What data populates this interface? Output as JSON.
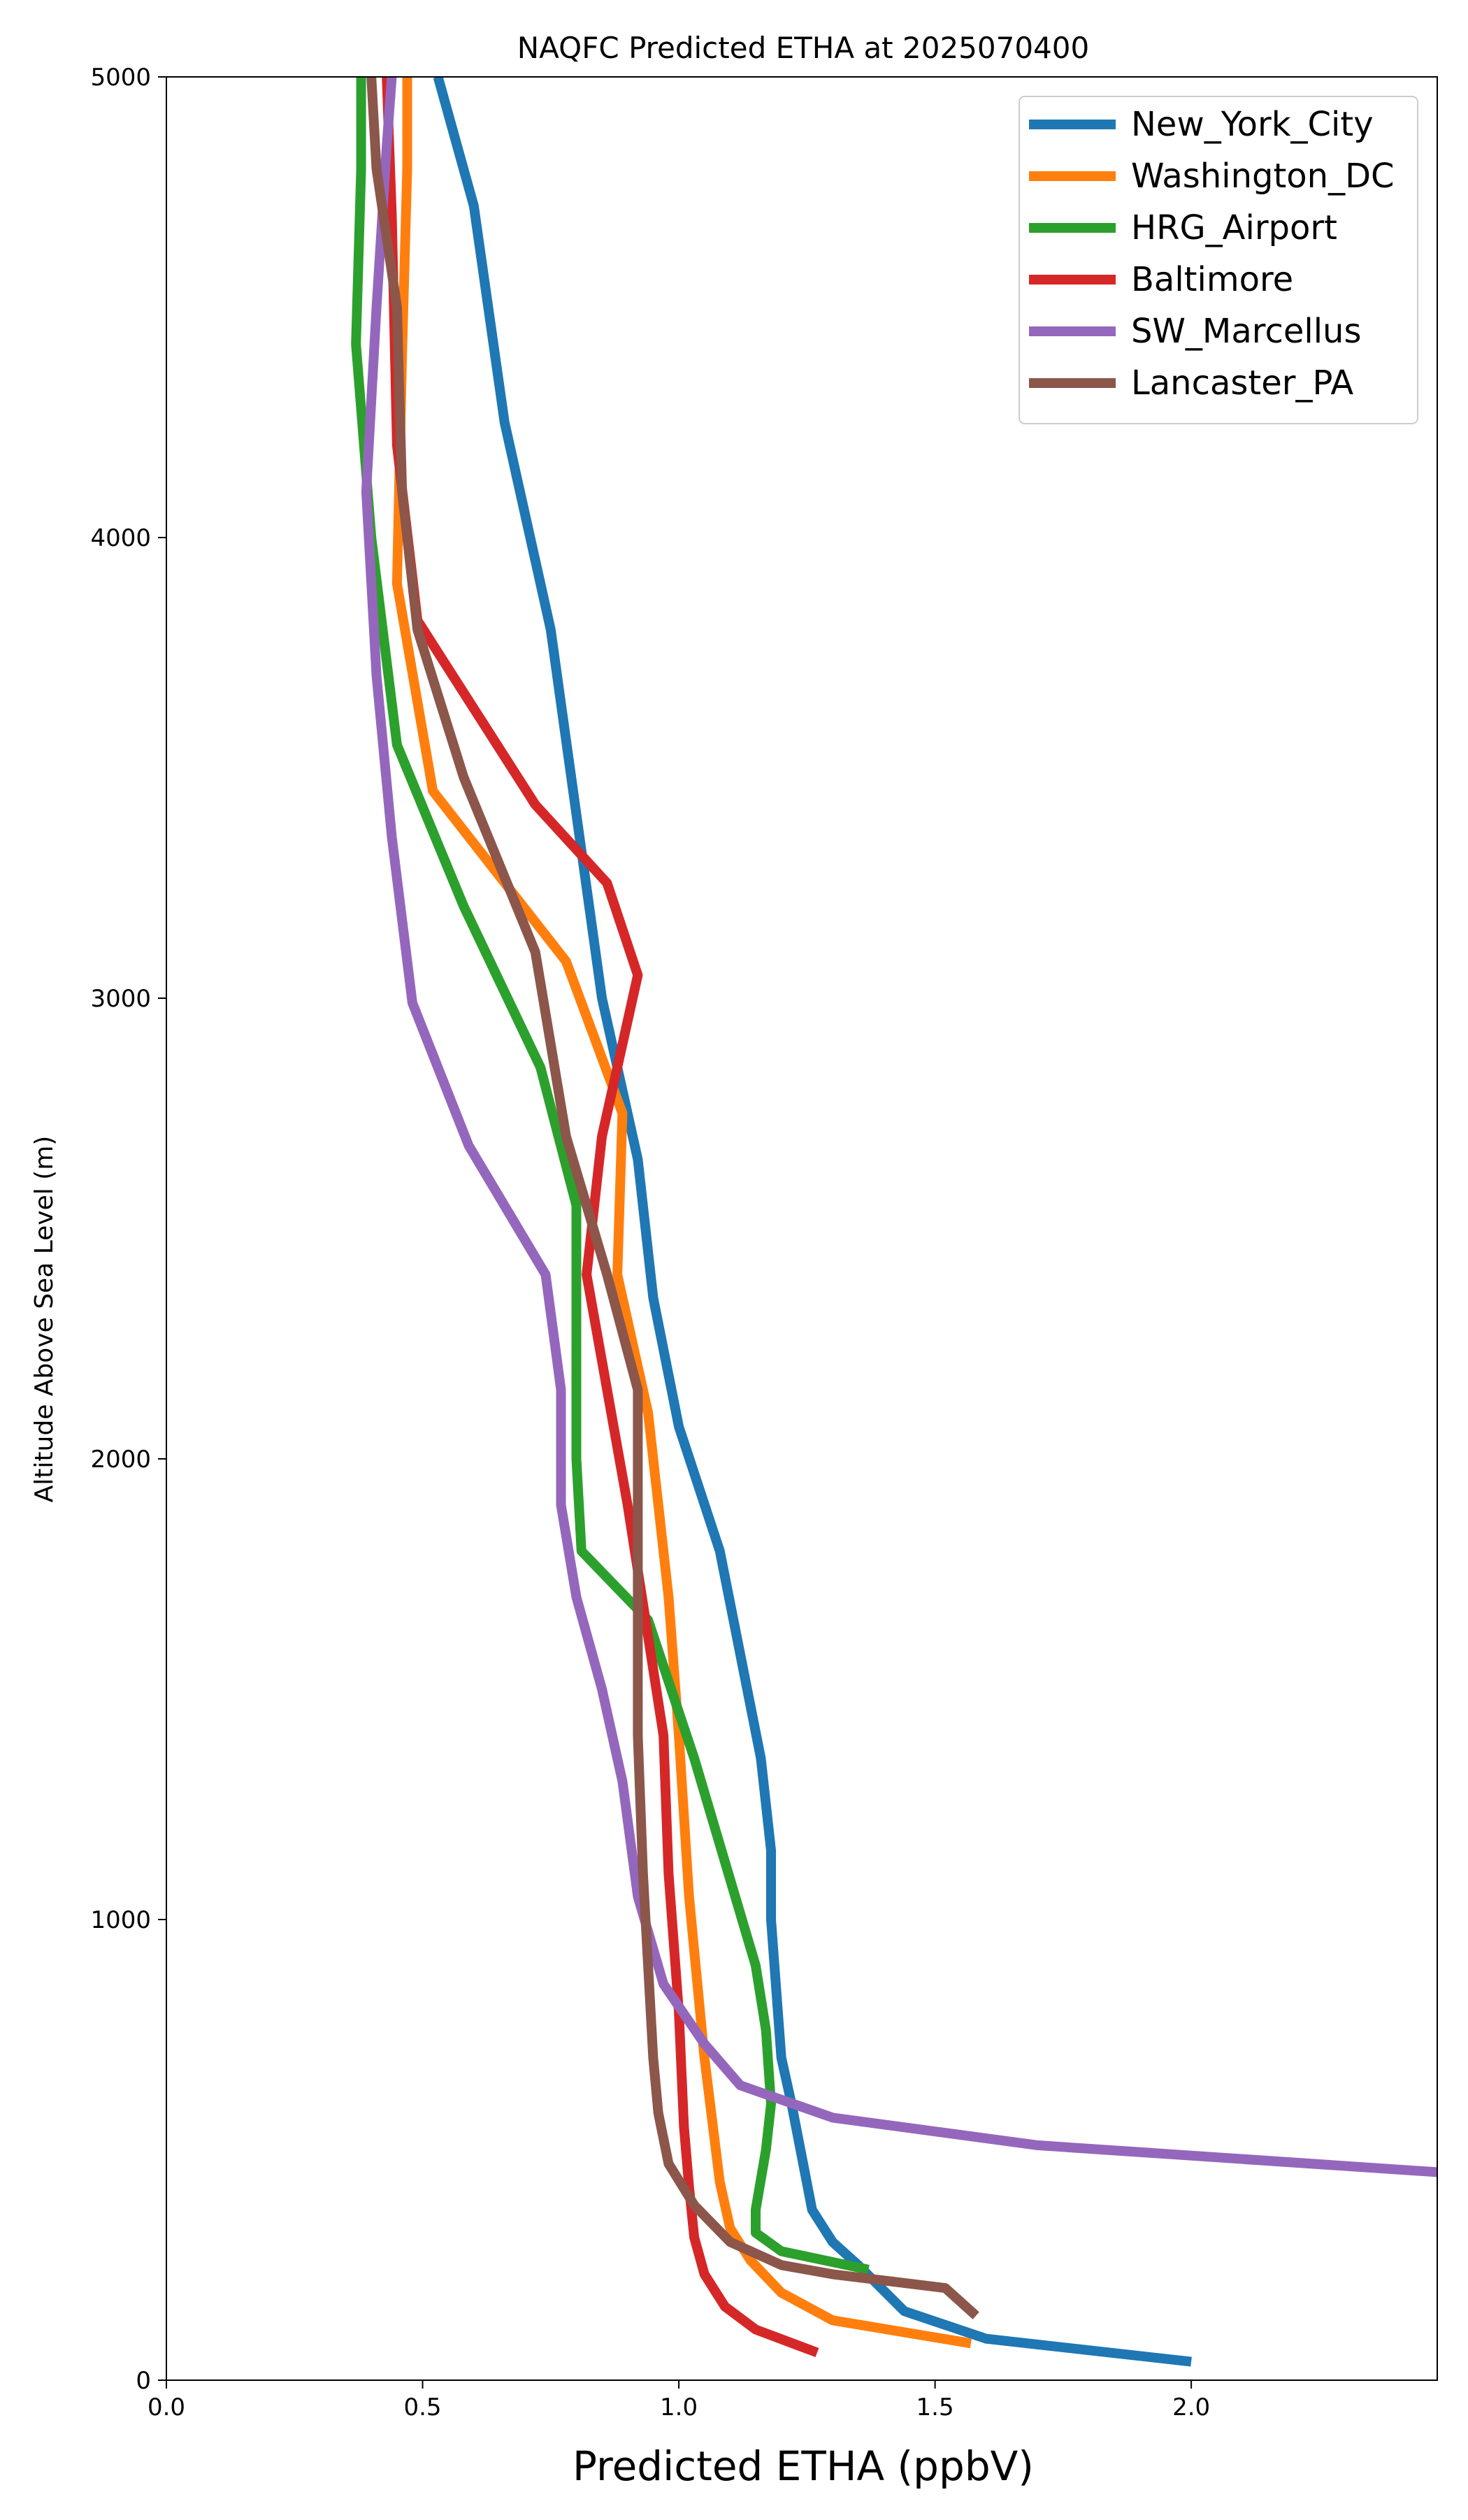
{
  "chart_data": {
    "type": "line",
    "title": "NAQFC Predicted ETHA at 2025070400",
    "xlabel": "Predicted ETHA (ppbV)",
    "ylabel": "Altitude Above Sea Level (m)",
    "xlim": [
      0.0,
      2.48
    ],
    "ylim": [
      0,
      5000
    ],
    "xticks": [
      "0.0",
      "0.5",
      "1.0",
      "1.5",
      "2.0"
    ],
    "yticks": [
      "0",
      "1000",
      "2000",
      "3000",
      "4000",
      "5000"
    ],
    "grid": false,
    "legend": "top-right",
    "series": [
      {
        "name": "New_York_City",
        "color": "#1f77b4",
        "points": [
          [
            2.0,
            40
          ],
          [
            1.6,
            90
          ],
          [
            1.44,
            150
          ],
          [
            1.35,
            250
          ],
          [
            1.3,
            300
          ],
          [
            1.26,
            370
          ],
          [
            1.22,
            600
          ],
          [
            1.2,
            700
          ],
          [
            1.19,
            850
          ],
          [
            1.18,
            1000
          ],
          [
            1.18,
            1150
          ],
          [
            1.16,
            1350
          ],
          [
            1.08,
            1800
          ],
          [
            1.0,
            2070
          ],
          [
            0.95,
            2350
          ],
          [
            0.92,
            2650
          ],
          [
            0.85,
            3000
          ],
          [
            0.75,
            3800
          ],
          [
            0.66,
            4250
          ],
          [
            0.6,
            4720
          ],
          [
            0.53,
            5000
          ]
        ]
      },
      {
        "name": "Washington_DC",
        "color": "#ff7f0e",
        "points": [
          [
            1.57,
            80
          ],
          [
            1.3,
            130
          ],
          [
            1.2,
            190
          ],
          [
            1.14,
            260
          ],
          [
            1.1,
            330
          ],
          [
            1.08,
            430
          ],
          [
            1.05,
            700
          ],
          [
            1.02,
            1050
          ],
          [
            1.0,
            1400
          ],
          [
            0.98,
            1700
          ],
          [
            0.94,
            2100
          ],
          [
            0.88,
            2400
          ],
          [
            0.89,
            2750
          ],
          [
            0.78,
            3080
          ],
          [
            0.52,
            3450
          ],
          [
            0.45,
            3900
          ],
          [
            0.46,
            4400
          ],
          [
            0.47,
            4800
          ],
          [
            0.47,
            5000
          ]
        ]
      },
      {
        "name": "HRG_Airport",
        "color": "#2ca02c",
        "points": [
          [
            1.37,
            240
          ],
          [
            1.2,
            280
          ],
          [
            1.15,
            320
          ],
          [
            1.15,
            370
          ],
          [
            1.17,
            500
          ],
          [
            1.18,
            600
          ],
          [
            1.17,
            760
          ],
          [
            1.15,
            900
          ],
          [
            1.07,
            1200
          ],
          [
            1.03,
            1350
          ],
          [
            0.94,
            1650
          ],
          [
            0.81,
            1800
          ],
          [
            0.8,
            2000
          ],
          [
            0.8,
            2550
          ],
          [
            0.73,
            2850
          ],
          [
            0.58,
            3200
          ],
          [
            0.45,
            3550
          ],
          [
            0.4,
            4000
          ],
          [
            0.37,
            4420
          ],
          [
            0.38,
            4800
          ],
          [
            0.38,
            5000
          ]
        ]
      },
      {
        "name": "Baltimore",
        "color": "#d62728",
        "points": [
          [
            1.27,
            60
          ],
          [
            1.15,
            110
          ],
          [
            1.09,
            160
          ],
          [
            1.05,
            230
          ],
          [
            1.03,
            310
          ],
          [
            1.02,
            420
          ],
          [
            1.01,
            550
          ],
          [
            1.0,
            800
          ],
          [
            0.98,
            1100
          ],
          [
            0.97,
            1400
          ],
          [
            0.9,
            1900
          ],
          [
            0.82,
            2400
          ],
          [
            0.85,
            2700
          ],
          [
            0.92,
            3050
          ],
          [
            0.86,
            3250
          ],
          [
            0.72,
            3420
          ],
          [
            0.49,
            3820
          ],
          [
            0.45,
            4200
          ],
          [
            0.44,
            4700
          ],
          [
            0.43,
            5000
          ]
        ]
      },
      {
        "name": "SW_Marcellus",
        "color": "#9467bd",
        "points": [
          [
            2.5,
            450
          ],
          [
            1.7,
            510
          ],
          [
            1.3,
            570
          ],
          [
            1.12,
            640
          ],
          [
            1.05,
            730
          ],
          [
            0.97,
            860
          ],
          [
            0.92,
            1050
          ],
          [
            0.89,
            1300
          ],
          [
            0.85,
            1500
          ],
          [
            0.8,
            1700
          ],
          [
            0.77,
            1900
          ],
          [
            0.77,
            2150
          ],
          [
            0.74,
            2400
          ],
          [
            0.59,
            2680
          ],
          [
            0.48,
            2990
          ],
          [
            0.44,
            3350
          ],
          [
            0.41,
            3700
          ],
          [
            0.39,
            4100
          ],
          [
            0.41,
            4500
          ],
          [
            0.43,
            4850
          ],
          [
            0.44,
            5000
          ]
        ]
      },
      {
        "name": "Lancaster_PA",
        "color": "#8c564b",
        "points": [
          [
            1.58,
            140
          ],
          [
            1.52,
            200
          ],
          [
            1.3,
            230
          ],
          [
            1.2,
            250
          ],
          [
            1.1,
            300
          ],
          [
            1.03,
            380
          ],
          [
            0.98,
            470
          ],
          [
            0.96,
            580
          ],
          [
            0.95,
            700
          ],
          [
            0.94,
            900
          ],
          [
            0.93,
            1100
          ],
          [
            0.92,
            1400
          ],
          [
            0.92,
            1800
          ],
          [
            0.92,
            2150
          ],
          [
            0.86,
            2400
          ],
          [
            0.78,
            2700
          ],
          [
            0.72,
            3100
          ],
          [
            0.58,
            3480
          ],
          [
            0.49,
            3800
          ],
          [
            0.46,
            4100
          ],
          [
            0.45,
            4500
          ],
          [
            0.41,
            4800
          ],
          [
            0.4,
            5000
          ]
        ]
      }
    ]
  }
}
